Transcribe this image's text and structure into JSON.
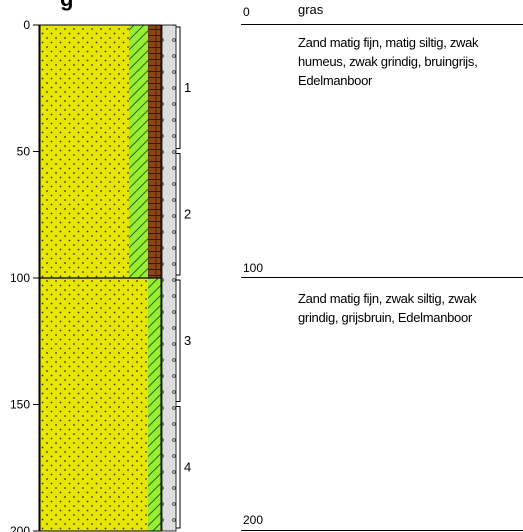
{
  "header": {
    "title_fragment": "g"
  },
  "depth_axis": {
    "ticks": [
      0,
      50,
      100,
      150,
      200
    ],
    "min": 0,
    "max": 200
  },
  "colors": {
    "sand_fill": "#e6e600",
    "sand_dot": "#333333",
    "hatch_fill": "#99ee33",
    "hatch_line": "#1a5a00",
    "brown_fill": "#8b4513",
    "brown_line": "#3a1a05",
    "sample_column": "#dddddd"
  },
  "samples": [
    {
      "label": "1",
      "from": 0,
      "to": 50
    },
    {
      "label": "2",
      "from": 50,
      "to": 100
    },
    {
      "label": "3",
      "from": 100,
      "to": 150
    },
    {
      "label": "4",
      "from": 150,
      "to": 200
    }
  ],
  "layers": [
    {
      "top_depth": "0",
      "top_note": "gras",
      "description": "Zand matig fijn, matig siltig, zwak humeus, zwak grindig, bruingrijs, Edelmanboor"
    },
    {
      "top_depth": "100",
      "top_note": "",
      "description": "Zand matig fijn, zwak siltig, zwak grindig, grijsbruin, Edelmanboor"
    }
  ],
  "bottom_depth": "200"
}
